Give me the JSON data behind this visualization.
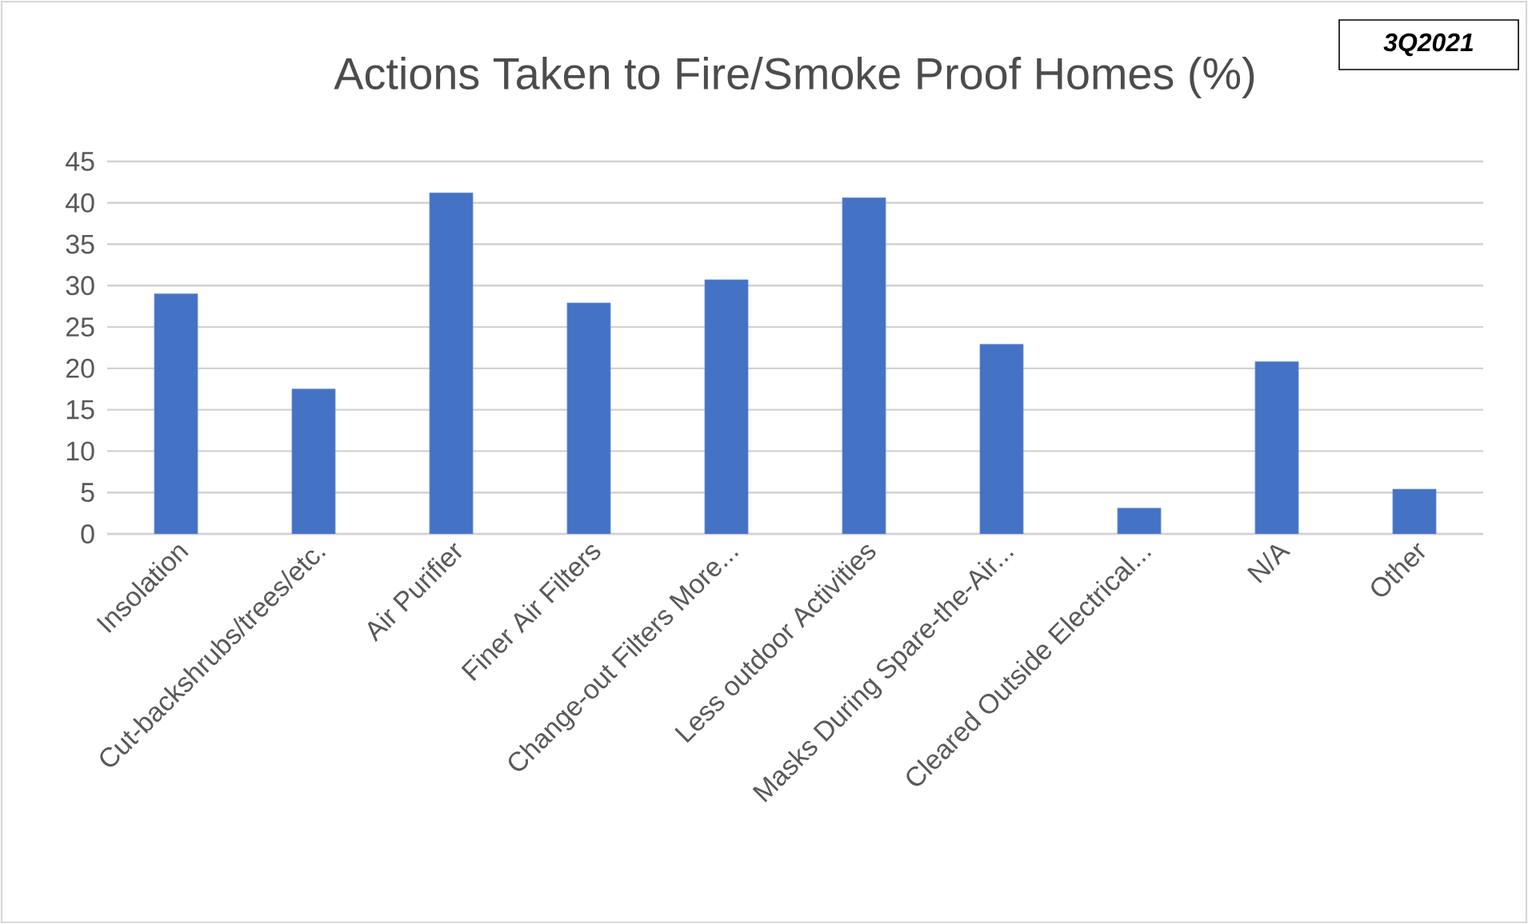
{
  "chart_data": {
    "type": "bar",
    "title": "Actions Taken to Fire/Smoke  Proof Homes (%)",
    "categories": [
      "Insolation",
      "Cut-backshrubs/trees/etc.",
      "Air Purifier",
      "Finer Air Filters",
      "Change-out Filters More...",
      "Less outdoor Activities",
      "Masks During Spare-the-Air...",
      "Cleared Outside Electrical...",
      "N/A",
      "Other"
    ],
    "values": [
      29.0,
      17.5,
      41.2,
      27.9,
      30.7,
      40.6,
      22.9,
      3.1,
      20.8,
      5.4
    ],
    "color": "#4472c4",
    "ylim": [
      0,
      45
    ],
    "yticks": [
      0,
      5,
      10,
      15,
      20,
      25,
      30,
      35,
      40,
      45
    ],
    "grid": "y",
    "annotations": [
      "3Q2021"
    ]
  }
}
